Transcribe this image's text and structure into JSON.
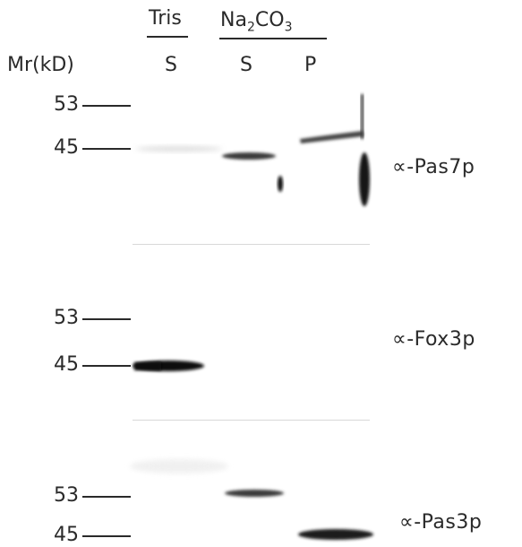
{
  "header": {
    "group1": "Tris",
    "group2": "Na",
    "group2_sub": "2",
    "group2_rest": "CO",
    "group2_sub2": "3",
    "mr_label": "Mr(kD)",
    "lane1": "S",
    "lane2": "S",
    "lane3": "P"
  },
  "panels": [
    {
      "mw_high": "53",
      "mw_low": "45",
      "antibody": "∝-Pas7p"
    },
    {
      "mw_high": "53",
      "mw_low": "45",
      "antibody": "∝-Fox3p"
    },
    {
      "mw_high": "53",
      "mw_low": "45",
      "antibody": "∝-Pas3p"
    }
  ],
  "colors": {
    "ink": "#2a2a2a",
    "band": "#1a1a1a",
    "separator": "#d8d8d8"
  }
}
